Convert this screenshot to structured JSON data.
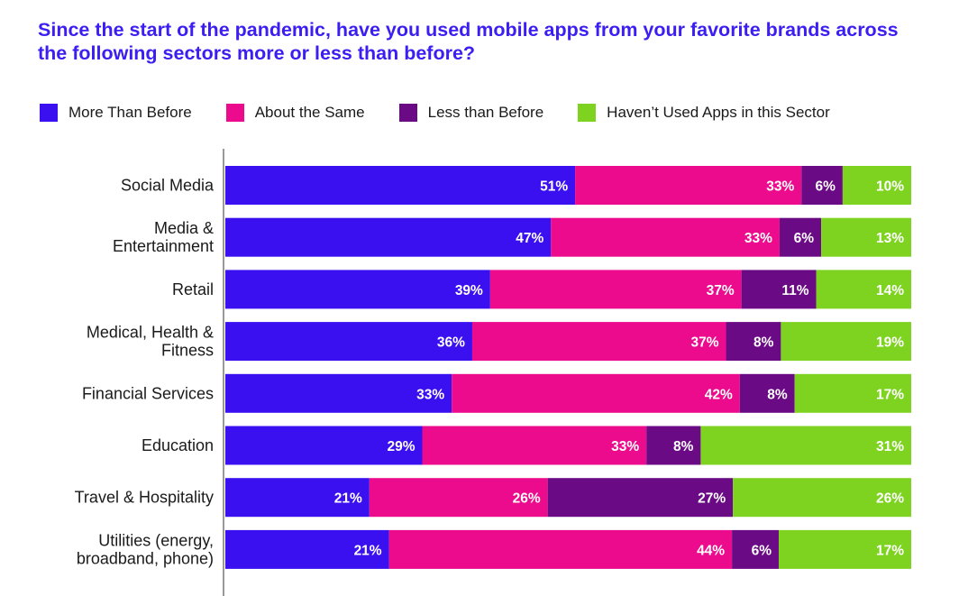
{
  "title": "Since the start of the pandemic, have you used mobile apps from your favorite brands across the following sectors more or less than before?",
  "chart_data": {
    "type": "bar",
    "orientation": "horizontal",
    "stacked": true,
    "categories": [
      [
        "Social Media"
      ],
      [
        "Media &",
        "Entertainment"
      ],
      [
        "Retail"
      ],
      [
        "Medical, Health &",
        "Fitness"
      ],
      [
        "Financial Services"
      ],
      [
        "Education"
      ],
      [
        "Travel & Hospitality"
      ],
      [
        "Utilities (energy,",
        "broadband, phone)"
      ]
    ],
    "series": [
      {
        "name": "More Than Before",
        "color": "#3a10f0",
        "values": [
          51,
          47,
          39,
          36,
          33,
          29,
          21,
          21
        ]
      },
      {
        "name": "About the Same",
        "color": "#ec0b8c",
        "values": [
          33,
          33,
          37,
          37,
          42,
          33,
          26,
          44
        ]
      },
      {
        "name": "Less than Before",
        "color": "#6b0a85",
        "values": [
          6,
          6,
          11,
          8,
          8,
          8,
          27,
          6
        ]
      },
      {
        "name": "Haven’t Used Apps in this Sector",
        "color": "#7ed321",
        "values": [
          10,
          13,
          14,
          19,
          17,
          31,
          26,
          17
        ]
      }
    ],
    "value_suffix": "%",
    "legend": "top"
  }
}
